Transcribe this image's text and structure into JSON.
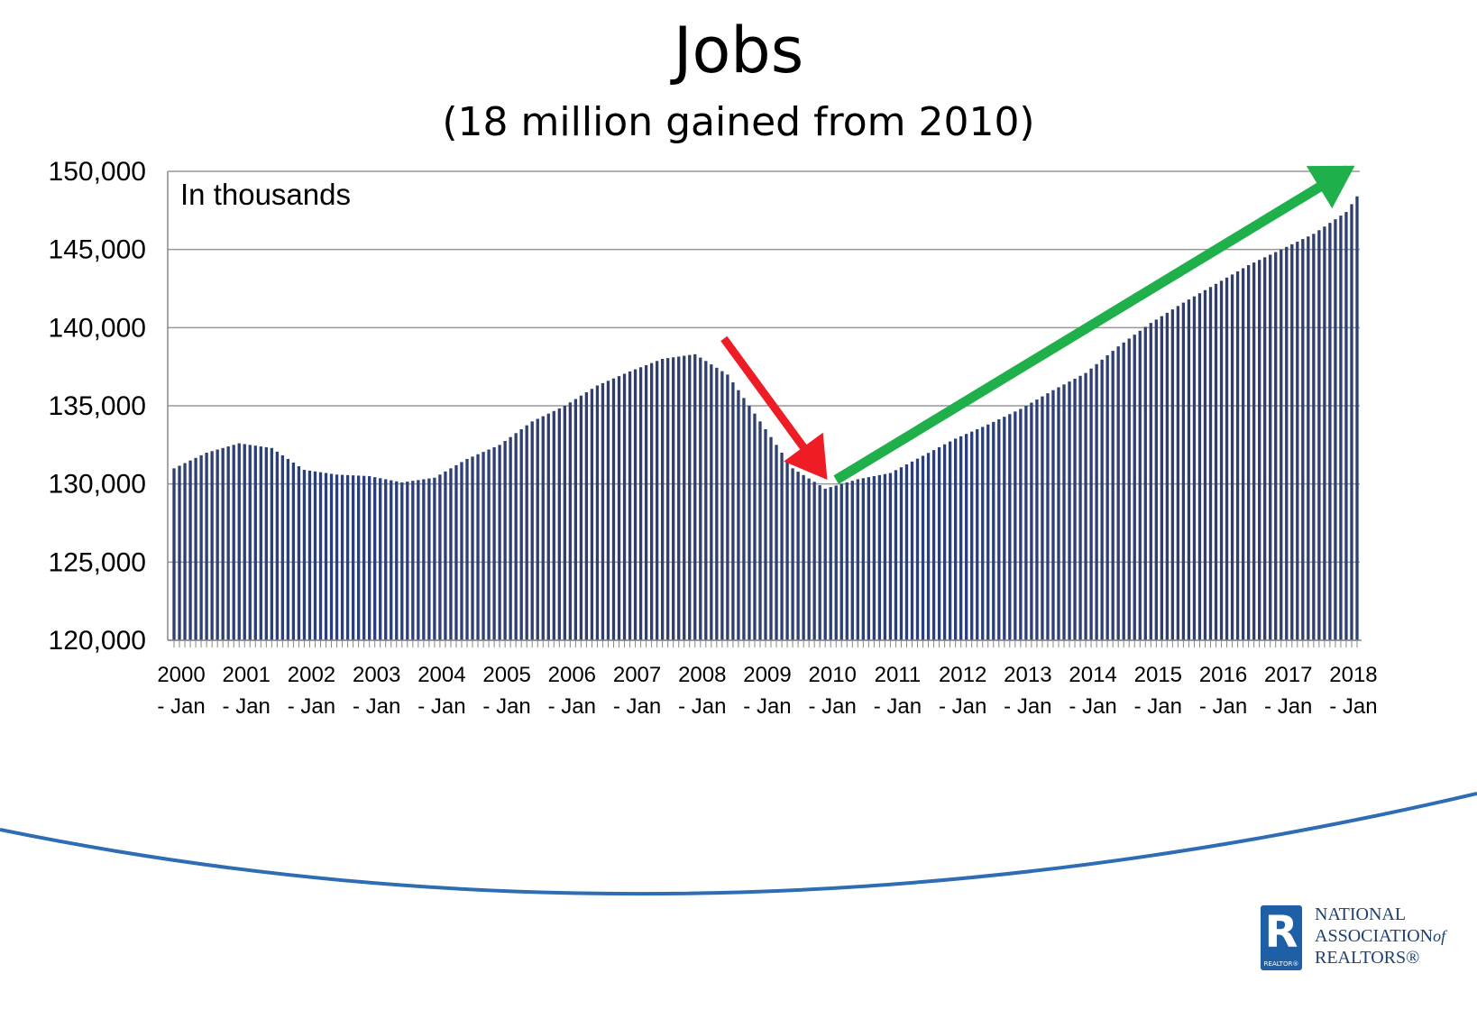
{
  "header": {
    "title": "Jobs",
    "subtitle": "(18 million gained from 2010)"
  },
  "annotations": {
    "unit_note": "In thousands",
    "decline_arrow_color": "#ee1c25",
    "recovery_arrow_color": "#20b04b"
  },
  "chart_data": {
    "type": "bar",
    "title": "Jobs",
    "subtitle": "(18 million gained from 2010)",
    "units": "In thousands",
    "frequency": "monthly",
    "start": "2000 - Jan",
    "end": "2018 - Mar",
    "bar_color": "#2e3f73",
    "grid": true,
    "ylim": [
      120000,
      150000
    ],
    "yticks": [
      "150,000",
      "145,000",
      "140,000",
      "135,000",
      "130,000",
      "125,000",
      "120,000"
    ],
    "xtick_years": [
      "2000",
      "2001",
      "2002",
      "2003",
      "2004",
      "2005",
      "2006",
      "2007",
      "2008",
      "2009",
      "2010",
      "2011",
      "2012",
      "2013",
      "2014",
      "2015",
      "2016",
      "2017",
      "2018"
    ],
    "xtick_suffix": "- Jan",
    "anchor_values": [
      [
        "2000 - Jan",
        131000
      ],
      [
        "2000 - Jul",
        132000
      ],
      [
        "2001 - Jan",
        132600
      ],
      [
        "2001 - Jul",
        132300
      ],
      [
        "2002 - Jan",
        130900
      ],
      [
        "2002 - Jul",
        130600
      ],
      [
        "2003 - Jan",
        130500
      ],
      [
        "2003 - Jul",
        130100
      ],
      [
        "2004 - Jan",
        130400
      ],
      [
        "2004 - Jul",
        131600
      ],
      [
        "2005 - Jan",
        132500
      ],
      [
        "2005 - Jul",
        134000
      ],
      [
        "2006 - Jan",
        135000
      ],
      [
        "2006 - Jul",
        136300
      ],
      [
        "2007 - Jan",
        137200
      ],
      [
        "2007 - Jul",
        138000
      ],
      [
        "2008 - Jan",
        138300
      ],
      [
        "2008 - Jul",
        137000
      ],
      [
        "2009 - Jan",
        134000
      ],
      [
        "2009 - Jul",
        131000
      ],
      [
        "2010 - Jan",
        129700
      ],
      [
        "2010 - Jul",
        130300
      ],
      [
        "2011 - Jan",
        130700
      ],
      [
        "2011 - Jul",
        131800
      ],
      [
        "2012 - Jan",
        132900
      ],
      [
        "2012 - Jul",
        133800
      ],
      [
        "2013 - Jan",
        134800
      ],
      [
        "2013 - Jul",
        136000
      ],
      [
        "2014 - Jan",
        137100
      ],
      [
        "2014 - Jul",
        138800
      ],
      [
        "2015 - Jan",
        140300
      ],
      [
        "2015 - Jul",
        141600
      ],
      [
        "2016 - Jan",
        142800
      ],
      [
        "2016 - Jul",
        144000
      ],
      [
        "2017 - Jan",
        145000
      ],
      [
        "2017 - Jul",
        146000
      ],
      [
        "2018 - Jan",
        147400
      ],
      [
        "2018 - Mar",
        148400
      ]
    ]
  },
  "logo": {
    "mark_letter": "R",
    "mark_caption": "REALTOR®",
    "line1": "NATIONAL",
    "line2": "ASSOCIATION",
    "line2_of": "of",
    "line3": "REALTORS®",
    "color": "#1f5fa6"
  }
}
